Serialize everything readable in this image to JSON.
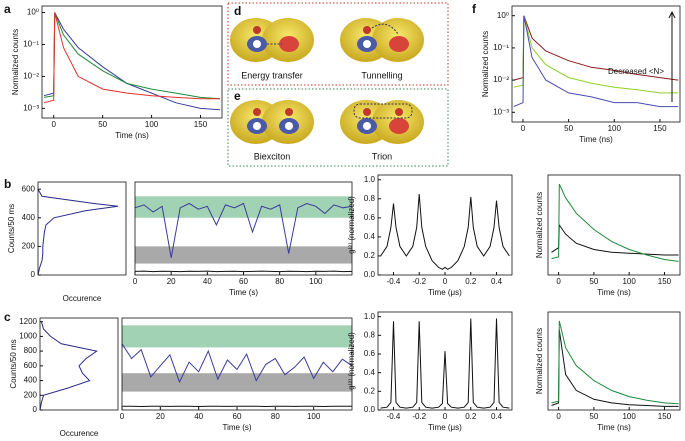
{
  "figure": {
    "panel_labels": [
      "a",
      "b",
      "c",
      "d",
      "e",
      "f"
    ],
    "diagram_labels": [
      "Energy transfer",
      "Tunnelling",
      "Biexciton",
      "Trion"
    ]
  },
  "chart_data": [
    {
      "type": "line",
      "ylog": true,
      "xlabel": "Time (ns)",
      "ylabel": "Normalized counts",
      "xlim": [
        -12,
        172
      ],
      "ylim": [
        0.0005,
        1.6
      ],
      "xticks": [
        0,
        50,
        100,
        150
      ],
      "yticks": [
        {
          "value": 0.001,
          "label": "10⁻³"
        },
        {
          "value": 0.01,
          "label": "10⁻²"
        },
        {
          "value": 0.1,
          "label": "10⁻¹"
        },
        {
          "value": 1,
          "label": "10⁰"
        }
      ],
      "x": [
        -10,
        0,
        1,
        10,
        25,
        50,
        75,
        100,
        125,
        150,
        170
      ],
      "series": [
        {
          "color": "#3a3d9e",
          "values": [
            0.0025,
            0.003,
            1,
            0.3,
            0.08,
            0.02,
            0.006,
            0.003,
            0.0015,
            0.001,
            0.0009
          ]
        },
        {
          "color": "#1e8a3a",
          "values": [
            0.0022,
            0.0025,
            1,
            0.2,
            0.05,
            0.015,
            0.006,
            0.004,
            0.003,
            0.0022,
            0.002
          ]
        },
        {
          "color": "#e0322a",
          "values": [
            0.0015,
            0.0018,
            1,
            0.08,
            0.01,
            0.004,
            0.003,
            0.0025,
            0.0022,
            0.002,
            0.002
          ]
        }
      ]
    },
    {
      "type": "profile",
      "xlabel": "Occurence",
      "ylabel": "Counts/50 ms",
      "xlim": [
        0,
        110
      ],
      "ylim": [
        0,
        650
      ],
      "yticks": [
        0,
        200,
        400,
        600
      ],
      "color": "#2a2a8a",
      "y": [
        0,
        50,
        100,
        150,
        200,
        250,
        300,
        350,
        400,
        450,
        480,
        500,
        550,
        600
      ],
      "values": [
        0,
        2,
        5,
        6,
        6,
        7,
        8,
        10,
        20,
        60,
        100,
        70,
        5,
        0
      ]
    },
    {
      "type": "line",
      "xlabel": "Time (s)",
      "xlim": [
        0,
        120
      ],
      "ylim": [
        0,
        650
      ],
      "xticks": [
        0,
        20,
        40,
        60,
        80,
        100
      ],
      "bands": [
        {
          "from": 400,
          "to": 550,
          "color": "#8fcaa6"
        },
        {
          "from": 80,
          "to": 200,
          "color": "#9a9a9a"
        }
      ],
      "x": [
        0,
        5,
        10,
        15,
        20,
        25,
        30,
        35,
        40,
        45,
        50,
        55,
        60,
        65,
        70,
        75,
        80,
        85,
        90,
        95,
        100,
        105,
        110,
        115,
        120
      ],
      "series": [
        {
          "color": "#3b3b9a",
          "values": [
            470,
            490,
            440,
            480,
            120,
            470,
            500,
            460,
            480,
            350,
            490,
            470,
            500,
            300,
            480,
            460,
            490,
            150,
            470,
            500,
            480,
            430,
            490,
            470,
            480
          ]
        },
        {
          "color": "#111111",
          "values": [
            25,
            27,
            24,
            26,
            25,
            24,
            26,
            25,
            27,
            24,
            25,
            26,
            24,
            25,
            27,
            25,
            24,
            26,
            25,
            24,
            26,
            25,
            27,
            24,
            25
          ]
        }
      ]
    },
    {
      "type": "line",
      "xlabel": "Time (μs)",
      "ylabel": "g⁽²⁾ (normalized)",
      "xlim": [
        -0.52,
        0.52
      ],
      "ylim": [
        0,
        1.05
      ],
      "xticks": [
        -0.4,
        -0.2,
        0,
        0.2,
        0.4
      ],
      "yticks": [
        {
          "value": 0,
          "label": "0.0"
        },
        {
          "value": 0.2,
          "label": "0.2"
        },
        {
          "value": 0.4,
          "label": "0.4"
        },
        {
          "value": 0.6,
          "label": "0.6"
        },
        {
          "value": 0.8,
          "label": "0.8"
        },
        {
          "value": 1,
          "label": "1.0"
        }
      ],
      "x": [
        -0.5,
        -0.45,
        -0.42,
        -0.4,
        -0.38,
        -0.35,
        -0.3,
        -0.25,
        -0.22,
        -0.2,
        -0.18,
        -0.15,
        -0.1,
        -0.05,
        -0.02,
        0,
        0.02,
        0.05,
        0.1,
        0.15,
        0.18,
        0.2,
        0.22,
        0.25,
        0.3,
        0.35,
        0.38,
        0.4,
        0.42,
        0.45,
        0.5
      ],
      "series": [
        {
          "color": "#111111",
          "values": [
            0.2,
            0.3,
            0.5,
            0.75,
            0.5,
            0.3,
            0.2,
            0.3,
            0.5,
            0.85,
            0.5,
            0.3,
            0.15,
            0.08,
            0.06,
            0.08,
            0.06,
            0.08,
            0.15,
            0.3,
            0.5,
            0.82,
            0.5,
            0.3,
            0.2,
            0.3,
            0.5,
            0.78,
            0.5,
            0.3,
            0.2
          ]
        }
      ]
    },
    {
      "type": "line",
      "xlabel": "Time (ns)",
      "ylabel": "Normalized counts",
      "xlim": [
        -15,
        172
      ],
      "ylim": [
        0,
        1.1
      ],
      "xticks": [
        0,
        50,
        100,
        150
      ],
      "x": [
        -10,
        0,
        1,
        10,
        25,
        50,
        75,
        100,
        125,
        150,
        170
      ],
      "series": [
        {
          "color": "#111111",
          "values": [
            0.25,
            0.3,
            0.55,
            0.45,
            0.35,
            0.28,
            0.25,
            0.24,
            0.23,
            0.22,
            0.22
          ]
        },
        {
          "color": "#1e8a3a",
          "values": [
            0.18,
            0.2,
            1,
            0.85,
            0.68,
            0.5,
            0.37,
            0.28,
            0.22,
            0.17,
            0.15
          ]
        }
      ]
    },
    {
      "type": "profile",
      "xlabel": "Occurence",
      "ylabel": "Counts/50 ms",
      "xlim": [
        0,
        110
      ],
      "ylim": [
        0,
        1250
      ],
      "yticks": [
        0,
        200,
        400,
        600,
        800,
        1000,
        1200
      ],
      "color": "#2a2a8a",
      "y": [
        0,
        100,
        200,
        300,
        400,
        500,
        600,
        700,
        800,
        900,
        1000,
        1100,
        1200
      ],
      "values": [
        0,
        2,
        5,
        40,
        70,
        60,
        55,
        65,
        80,
        30,
        15,
        5,
        2
      ]
    },
    {
      "type": "line",
      "xlabel": "Time (s)",
      "xlim": [
        0,
        120
      ],
      "ylim": [
        0,
        1250
      ],
      "xticks": [
        0,
        20,
        40,
        60,
        80,
        100
      ],
      "bands": [
        {
          "from": 850,
          "to": 1150,
          "color": "#8fcaa6"
        },
        {
          "from": 250,
          "to": 500,
          "color": "#9a9a9a"
        }
      ],
      "x": [
        0,
        5,
        10,
        15,
        20,
        25,
        30,
        35,
        40,
        45,
        50,
        55,
        60,
        65,
        70,
        75,
        80,
        85,
        90,
        95,
        100,
        105,
        110,
        115,
        120
      ],
      "series": [
        {
          "color": "#3b3b9a",
          "values": [
            900,
            700,
            820,
            450,
            600,
            750,
            380,
            650,
            520,
            800,
            420,
            680,
            550,
            760,
            400,
            620,
            700,
            480,
            580,
            720,
            430,
            650,
            520,
            690,
            600
          ]
        },
        {
          "color": "#111111",
          "values": [
            50,
            52,
            48,
            51,
            50,
            49,
            52,
            50,
            48,
            51,
            50,
            49,
            52,
            50,
            51,
            48,
            50,
            52,
            49,
            50,
            51,
            48,
            50,
            52,
            50
          ]
        }
      ]
    },
    {
      "type": "line",
      "xlabel": "Time (μs)",
      "ylabel": "g⁽²⁾ (normalized)",
      "xlim": [
        -0.52,
        0.52
      ],
      "ylim": [
        0,
        1.05
      ],
      "xticks": [
        -0.4,
        -0.2,
        0,
        0.2,
        0.4
      ],
      "yticks": [
        {
          "value": 0,
          "label": "0.0"
        },
        {
          "value": 0.2,
          "label": "0.2"
        },
        {
          "value": 0.4,
          "label": "0.4"
        },
        {
          "value": 0.6,
          "label": "0.6"
        },
        {
          "value": 0.8,
          "label": "0.8"
        },
        {
          "value": 1,
          "label": "1.0"
        }
      ],
      "x": [
        -0.5,
        -0.45,
        -0.42,
        -0.4,
        -0.38,
        -0.35,
        -0.3,
        -0.25,
        -0.22,
        -0.2,
        -0.18,
        -0.15,
        -0.1,
        -0.05,
        -0.02,
        0,
        0.02,
        0.05,
        0.1,
        0.15,
        0.18,
        0.2,
        0.22,
        0.25,
        0.3,
        0.35,
        0.38,
        0.4,
        0.42,
        0.45,
        0.5
      ],
      "series": [
        {
          "color": "#111111",
          "values": [
            0.02,
            0.03,
            0.08,
            0.95,
            0.08,
            0.03,
            0.02,
            0.03,
            0.08,
            0.95,
            0.08,
            0.03,
            0.02,
            0.03,
            0.07,
            0.63,
            0.07,
            0.03,
            0.02,
            0.03,
            0.08,
            0.98,
            0.08,
            0.03,
            0.02,
            0.03,
            0.08,
            0.98,
            0.08,
            0.03,
            0.02
          ]
        }
      ]
    },
    {
      "type": "line",
      "xlabel": "Time (ns)",
      "ylabel": "Normalized counts",
      "xlim": [
        -15,
        172
      ],
      "ylim": [
        0,
        1.1
      ],
      "xticks": [
        0,
        50,
        100,
        150
      ],
      "x": [
        -10,
        0,
        1,
        10,
        25,
        50,
        75,
        100,
        125,
        150,
        170
      ],
      "series": [
        {
          "color": "#111111",
          "values": [
            0.05,
            0.08,
            0.9,
            0.4,
            0.22,
            0.12,
            0.08,
            0.06,
            0.05,
            0.04,
            0.04
          ]
        },
        {
          "color": "#1e8a3a",
          "values": [
            0.08,
            0.1,
            1,
            0.7,
            0.5,
            0.33,
            0.22,
            0.15,
            0.11,
            0.08,
            0.07
          ]
        }
      ]
    },
    {
      "type": "line",
      "ylog": true,
      "xlabel": "Time (ns)",
      "ylabel": "Normalized counts",
      "annotation": "Decreased <N>",
      "xlim": [
        -12,
        172
      ],
      "ylim": [
        0.0005,
        2
      ],
      "xticks": [
        0,
        50,
        100,
        150
      ],
      "yticks": [
        {
          "value": 0.001,
          "label": "10⁻³"
        },
        {
          "value": 0.01,
          "label": "10⁻²"
        },
        {
          "value": 0.1,
          "label": "10⁻¹"
        },
        {
          "value": 1,
          "label": "10⁰"
        }
      ],
      "x": [
        -10,
        0,
        1,
        10,
        25,
        50,
        75,
        100,
        125,
        150,
        170
      ],
      "series": [
        {
          "color": "#8b1a1a",
          "values": [
            0.01,
            0.012,
            1,
            0.2,
            0.08,
            0.04,
            0.025,
            0.02,
            0.015,
            0.012,
            0.01
          ]
        },
        {
          "color": "#8ed12a",
          "values": [
            0.006,
            0.007,
            1,
            0.1,
            0.03,
            0.012,
            0.008,
            0.006,
            0.005,
            0.004,
            0.004
          ]
        },
        {
          "color": "#4a4ab0",
          "values": [
            0.0015,
            0.002,
            1,
            0.05,
            0.01,
            0.004,
            0.003,
            0.002,
            0.002,
            0.0015,
            0.0015
          ]
        }
      ]
    }
  ]
}
